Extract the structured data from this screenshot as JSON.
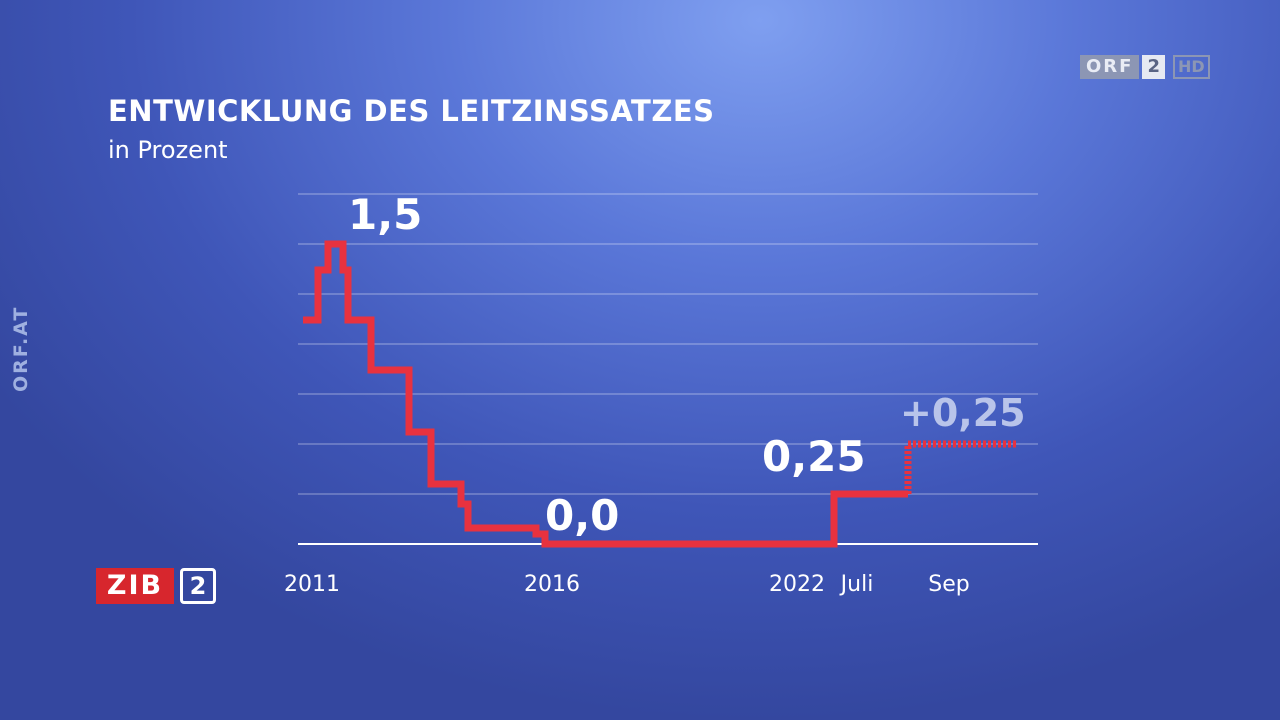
{
  "branding": {
    "channel": "ORF",
    "channel_number": "2",
    "hd": "HD",
    "side_text": "ORF.AT",
    "show_name": "ZIB",
    "show_number": "2"
  },
  "chart_data": {
    "type": "line",
    "title": "ENTWICKLUNG DES LEITZINSSATZES",
    "subtitle": "in Prozent",
    "ylim": [
      0,
      1.75
    ],
    "grid": true,
    "x_tick_labels": [
      "2011",
      "2016",
      "2022",
      "Juli",
      "Sep"
    ],
    "series": [
      {
        "color": "#e8323f",
        "style": "solid",
        "step_values": [
          1.12,
          1.37,
          1.5,
          1.37,
          1.12,
          0.87,
          0.56,
          0.3,
          0.2,
          0.08,
          0.05,
          0.0,
          0.25
        ]
      },
      {
        "color": "#e8323f",
        "style": "dashed",
        "step_values": [
          0.25,
          0.5
        ]
      }
    ],
    "annotations": [
      {
        "text": "1,5",
        "at": 1.5
      },
      {
        "text": "0,0",
        "at": 0.0
      },
      {
        "text": "0,25",
        "at": 0.25
      },
      {
        "text": "+0,25",
        "at": 0.5
      }
    ]
  }
}
